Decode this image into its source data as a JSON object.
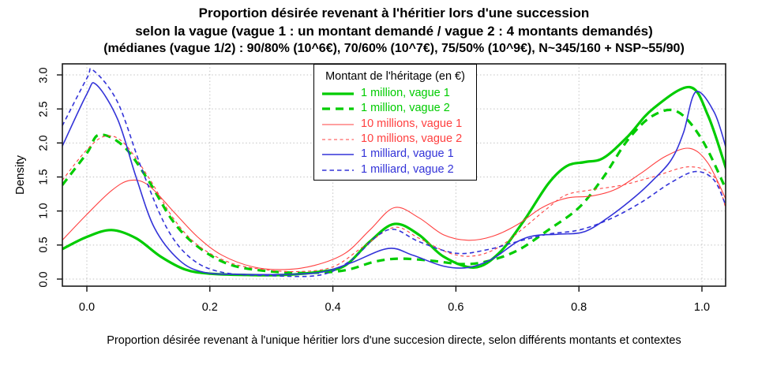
{
  "chart_data": {
    "type": "line",
    "title": "Proportion désirée revenant à l'héritier lors d'une succession",
    "subtitle": "selon la vague (vague 1 : un montant demandé / vague 2 : 4 montants demandés)",
    "note": "(médianes (vague 1/2) : 90/80% (10^6€), 70/60% (10^7€), 75/50% (10^9€), N~345/160 + NSP~55/90)",
    "xlabel": "Proportion désirée revenant à l'unique héritier lors d'une succesion directe, selon différents montants et contextes",
    "ylabel": "Density",
    "xlim": [
      -0.04,
      1.04
    ],
    "ylim": [
      0,
      3.16
    ],
    "grid": true,
    "legend_title": "Montant de l'héritage (en €)",
    "legend_position": "top-center",
    "xticks": [
      0,
      0.2,
      0.4,
      0.6,
      0.8,
      1.0
    ],
    "xtick_labels": [
      "0.0",
      "0.2",
      "0.4",
      "0.6",
      "0.8",
      "1.0"
    ],
    "yticks": [
      0,
      0.5,
      1.0,
      1.5,
      2.0,
      2.5,
      3.0
    ],
    "ytick_labels": [
      "0.0",
      "0.5",
      "1.0",
      "1.5",
      "2.0",
      "2.5",
      "3.0"
    ],
    "series": [
      {
        "name": "1 million, vague 1",
        "color": "#00CC00",
        "dash": null,
        "width": 3.2,
        "points": [
          [
            -0.04,
            0.44
          ],
          [
            0,
            0.62
          ],
          [
            0.04,
            0.72
          ],
          [
            0.08,
            0.6
          ],
          [
            0.12,
            0.33
          ],
          [
            0.16,
            0.14
          ],
          [
            0.2,
            0.08
          ],
          [
            0.26,
            0.06
          ],
          [
            0.32,
            0.06
          ],
          [
            0.38,
            0.11
          ],
          [
            0.42,
            0.2
          ],
          [
            0.46,
            0.55
          ],
          [
            0.5,
            0.81
          ],
          [
            0.54,
            0.65
          ],
          [
            0.58,
            0.33
          ],
          [
            0.63,
            0.17
          ],
          [
            0.67,
            0.38
          ],
          [
            0.71,
            0.85
          ],
          [
            0.75,
            1.4
          ],
          [
            0.78,
            1.66
          ],
          [
            0.81,
            1.72
          ],
          [
            0.84,
            1.78
          ],
          [
            0.88,
            2.1
          ],
          [
            0.92,
            2.5
          ],
          [
            0.98,
            2.82
          ],
          [
            1.01,
            2.4
          ],
          [
            1.04,
            1.6
          ]
        ]
      },
      {
        "name": "1 million, vague 2",
        "color": "#00CC00",
        "dash": [
          10,
          7
        ],
        "width": 3.2,
        "points": [
          [
            -0.04,
            1.38
          ],
          [
            0,
            1.85
          ],
          [
            0.02,
            2.12
          ],
          [
            0.06,
            1.95
          ],
          [
            0.1,
            1.45
          ],
          [
            0.14,
            0.85
          ],
          [
            0.18,
            0.48
          ],
          [
            0.23,
            0.22
          ],
          [
            0.29,
            0.12
          ],
          [
            0.36,
            0.09
          ],
          [
            0.42,
            0.13
          ],
          [
            0.47,
            0.26
          ],
          [
            0.51,
            0.3
          ],
          [
            0.56,
            0.27
          ],
          [
            0.61,
            0.22
          ],
          [
            0.65,
            0.26
          ],
          [
            0.7,
            0.42
          ],
          [
            0.75,
            0.72
          ],
          [
            0.8,
            1.05
          ],
          [
            0.84,
            1.5
          ],
          [
            0.88,
            2.05
          ],
          [
            0.92,
            2.4
          ],
          [
            0.96,
            2.46
          ],
          [
            1,
            2.05
          ],
          [
            1.04,
            1.3
          ]
        ]
      },
      {
        "name": "10 millions, vague 1",
        "color": "#FF4040",
        "dash": null,
        "width": 1.1,
        "points": [
          [
            -0.04,
            0.57
          ],
          [
            0,
            0.95
          ],
          [
            0.04,
            1.3
          ],
          [
            0.07,
            1.45
          ],
          [
            0.1,
            1.38
          ],
          [
            0.14,
            1
          ],
          [
            0.18,
            0.62
          ],
          [
            0.22,
            0.35
          ],
          [
            0.27,
            0.18
          ],
          [
            0.32,
            0.14
          ],
          [
            0.37,
            0.2
          ],
          [
            0.42,
            0.38
          ],
          [
            0.46,
            0.72
          ],
          [
            0.5,
            1.05
          ],
          [
            0.54,
            0.9
          ],
          [
            0.58,
            0.65
          ],
          [
            0.62,
            0.57
          ],
          [
            0.66,
            0.63
          ],
          [
            0.7,
            0.8
          ],
          [
            0.74,
            1.05
          ],
          [
            0.78,
            1.19
          ],
          [
            0.82,
            1.22
          ],
          [
            0.86,
            1.32
          ],
          [
            0.9,
            1.55
          ],
          [
            0.94,
            1.8
          ],
          [
            0.98,
            1.92
          ],
          [
            1.01,
            1.7
          ],
          [
            1.04,
            1.15
          ]
        ]
      },
      {
        "name": "10 millions, vague 2",
        "color": "#FF4040",
        "dash": [
          4,
          3.5
        ],
        "width": 1.1,
        "points": [
          [
            -0.04,
            1.45
          ],
          [
            0,
            1.9
          ],
          [
            0.03,
            2.1
          ],
          [
            0.06,
            2
          ],
          [
            0.1,
            1.5
          ],
          [
            0.14,
            0.9
          ],
          [
            0.18,
            0.5
          ],
          [
            0.23,
            0.25
          ],
          [
            0.28,
            0.15
          ],
          [
            0.34,
            0.11
          ],
          [
            0.4,
            0.18
          ],
          [
            0.45,
            0.48
          ],
          [
            0.5,
            0.76
          ],
          [
            0.54,
            0.6
          ],
          [
            0.59,
            0.38
          ],
          [
            0.63,
            0.34
          ],
          [
            0.67,
            0.47
          ],
          [
            0.71,
            0.75
          ],
          [
            0.75,
            1.05
          ],
          [
            0.78,
            1.24
          ],
          [
            0.82,
            1.31
          ],
          [
            0.87,
            1.38
          ],
          [
            0.92,
            1.5
          ],
          [
            0.98,
            1.65
          ],
          [
            1.02,
            1.5
          ],
          [
            1.04,
            1
          ]
        ]
      },
      {
        "name": "1 milliard, vague 1",
        "color": "#3333D8",
        "dash": null,
        "width": 1.6,
        "points": [
          [
            -0.04,
            1.95
          ],
          [
            0,
            2.72
          ],
          [
            0.015,
            2.86
          ],
          [
            0.05,
            2.35
          ],
          [
            0.08,
            1.5
          ],
          [
            0.11,
            0.75
          ],
          [
            0.15,
            0.28
          ],
          [
            0.19,
            0.1
          ],
          [
            0.25,
            0.07
          ],
          [
            0.32,
            0.07
          ],
          [
            0.38,
            0.1
          ],
          [
            0.43,
            0.24
          ],
          [
            0.49,
            0.45
          ],
          [
            0.53,
            0.35
          ],
          [
            0.58,
            0.19
          ],
          [
            0.62,
            0.17
          ],
          [
            0.66,
            0.3
          ],
          [
            0.7,
            0.55
          ],
          [
            0.73,
            0.64
          ],
          [
            0.77,
            0.66
          ],
          [
            0.81,
            0.7
          ],
          [
            0.85,
            0.92
          ],
          [
            0.89,
            1.2
          ],
          [
            0.92,
            1.45
          ],
          [
            0.95,
            1.75
          ],
          [
            0.97,
            2.15
          ],
          [
            0.99,
            2.75
          ],
          [
            1.02,
            2.45
          ],
          [
            1.04,
            1.9
          ]
        ]
      },
      {
        "name": "1 milliard, vague 2",
        "color": "#3333D8",
        "dash": [
          5.5,
          4
        ],
        "width": 1.6,
        "points": [
          [
            -0.04,
            2.25
          ],
          [
            0,
            2.95
          ],
          [
            0.01,
            3.07
          ],
          [
            0.05,
            2.6
          ],
          [
            0.09,
            1.6
          ],
          [
            0.13,
            0.75
          ],
          [
            0.17,
            0.3
          ],
          [
            0.22,
            0.1
          ],
          [
            0.3,
            0.05
          ],
          [
            0.38,
            0.06
          ],
          [
            0.43,
            0.28
          ],
          [
            0.47,
            0.62
          ],
          [
            0.5,
            0.73
          ],
          [
            0.54,
            0.55
          ],
          [
            0.6,
            0.38
          ],
          [
            0.65,
            0.43
          ],
          [
            0.7,
            0.55
          ],
          [
            0.75,
            0.66
          ],
          [
            0.8,
            0.72
          ],
          [
            0.85,
            0.88
          ],
          [
            0.9,
            1.12
          ],
          [
            0.95,
            1.42
          ],
          [
            0.99,
            1.58
          ],
          [
            1.02,
            1.45
          ],
          [
            1.04,
            1.05
          ]
        ]
      }
    ]
  },
  "colors": {
    "grid": "#C3C3C3",
    "box": "#1A1A1A",
    "background": "#FFFFFF"
  }
}
